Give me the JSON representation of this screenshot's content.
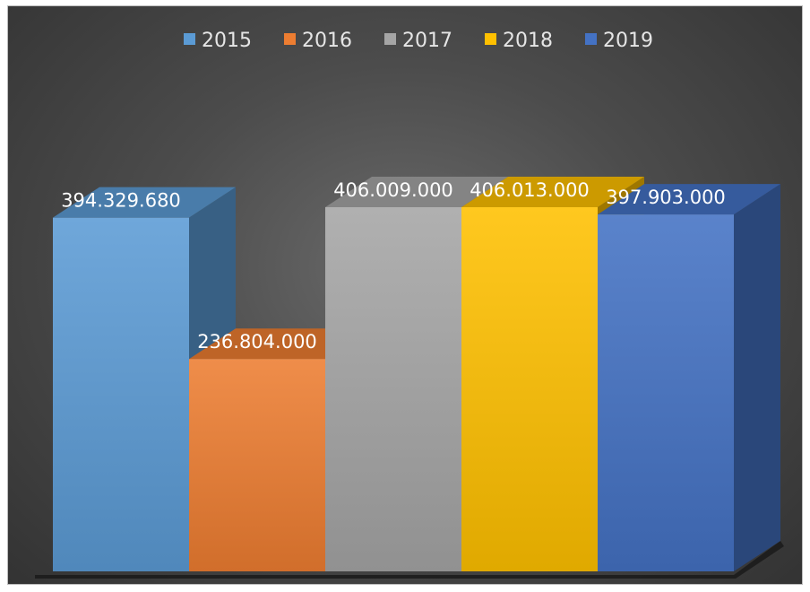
{
  "chart_data": {
    "type": "bar",
    "three_d": true,
    "categories": [
      "2015",
      "2016",
      "2017",
      "2018",
      "2019"
    ],
    "series": [
      {
        "name": "2015",
        "value": 394329680,
        "label": "394.329.680",
        "color": "#5b9bd5"
      },
      {
        "name": "2016",
        "value": 236804000,
        "label": "236.804.000",
        "color": "#ed7d31"
      },
      {
        "name": "2017",
        "value": 406009000,
        "label": "406.009.000",
        "color": "#a5a5a5"
      },
      {
        "name": "2018",
        "value": 406013000,
        "label": "406.013.000",
        "color": "#ffc000"
      },
      {
        "name": "2019",
        "value": 397903000,
        "label": "397.903.000",
        "color": "#4472c4"
      }
    ],
    "ylim": [
      0,
      406013000
    ],
    "legend": "top",
    "grid": false,
    "title": "",
    "xlabel": "",
    "ylabel": ""
  }
}
